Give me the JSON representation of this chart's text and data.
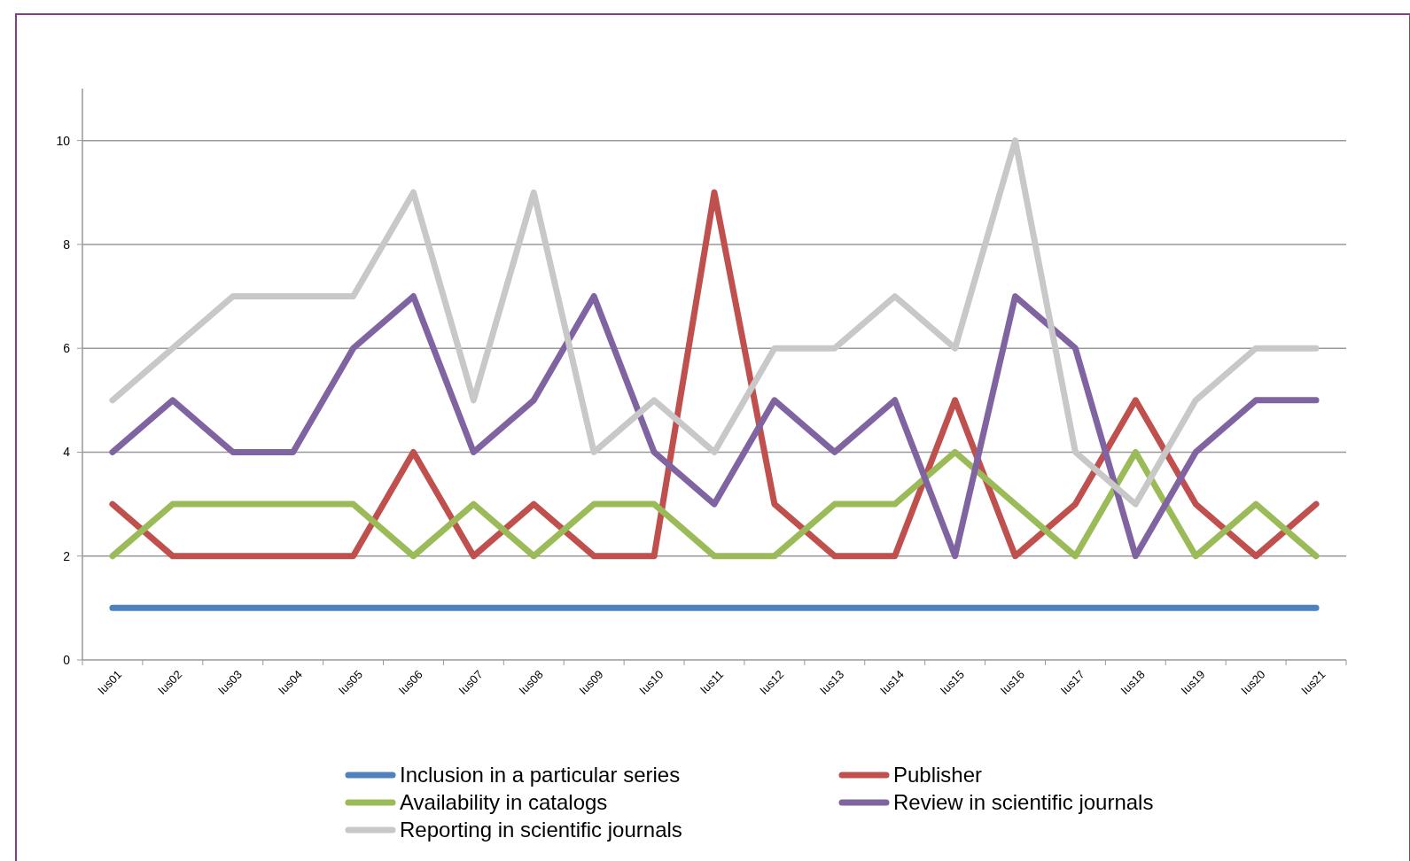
{
  "chart_data": {
    "type": "line",
    "categories": [
      "Ius01",
      "Ius02",
      "Ius03",
      "Ius04",
      "Ius05",
      "Ius06",
      "Ius07",
      "Ius08",
      "Ius09",
      "Ius10",
      "Ius11",
      "Ius12",
      "Ius13",
      "Ius14",
      "Ius15",
      "Ius16",
      "Ius17",
      "Ius18",
      "Ius19",
      "Ius20",
      "Ius21"
    ],
    "series": [
      {
        "name": "Inclusion in a particular series",
        "color": "#4f81bd",
        "values": [
          1,
          1,
          1,
          1,
          1,
          1,
          1,
          1,
          1,
          1,
          1,
          1,
          1,
          1,
          1,
          1,
          1,
          1,
          1,
          1,
          1
        ]
      },
      {
        "name": "Publisher",
        "color": "#c0504d",
        "values": [
          3,
          2,
          2,
          2,
          2,
          4,
          2,
          3,
          2,
          2,
          9,
          3,
          2,
          2,
          5,
          2,
          3,
          5,
          3,
          2,
          3
        ]
      },
      {
        "name": "Availability in catalogs",
        "color": "#9bbb59",
        "values": [
          2,
          3,
          3,
          3,
          3,
          2,
          3,
          2,
          3,
          3,
          2,
          2,
          3,
          3,
          4,
          3,
          2,
          4,
          2,
          3,
          2
        ]
      },
      {
        "name": "Review in scientific journals",
        "color": "#8064a2",
        "values": [
          4,
          5,
          4,
          4,
          6,
          7,
          4,
          5,
          7,
          4,
          3,
          5,
          4,
          5,
          2,
          7,
          6,
          2,
          4,
          5,
          5
        ]
      },
      {
        "name": "Reporting in scientific journals",
        "color": "#c8c8c8",
        "values": [
          5,
          6,
          7,
          7,
          7,
          9,
          5,
          9,
          4,
          5,
          4,
          6,
          6,
          7,
          6,
          10,
          4,
          3,
          5,
          6,
          6
        ]
      }
    ],
    "ylim": [
      0,
      11
    ],
    "yticks": [
      0,
      2,
      4,
      6,
      8,
      10
    ],
    "grid": "y",
    "legend": "bottom",
    "marker": "none",
    "line_style": "solid"
  }
}
